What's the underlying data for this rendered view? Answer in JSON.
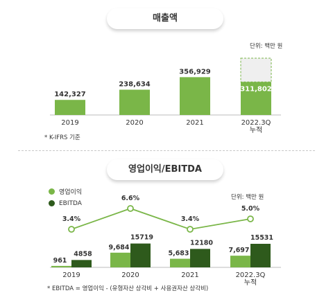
{
  "chart_data": [
    {
      "type": "bar",
      "title": "매출액",
      "unit": "단위: 백만 원",
      "note": "* K-IFRS 기준",
      "categories": [
        "2019",
        "2020",
        "2021",
        "2022.3Q\n누적"
      ],
      "values": [
        142327,
        238634,
        356929,
        311802
      ],
      "projection_box": "dashed outline above 2022.3Q bar",
      "colors": {
        "bar": "#7ab648",
        "box_border": "#7ab648",
        "box_fill": "#efefef"
      }
    },
    {
      "type": "bar",
      "title": "영업이익/EBITDA",
      "unit": "단위: 백만 원",
      "note": "* EBITDA = 영업이익 - (유형자산 상각비 + 사용권자산 상각비)",
      "categories": [
        "2019",
        "2020",
        "2021",
        "2022.3Q\n누적"
      ],
      "series": [
        {
          "name": "영업이익",
          "values": [
            961,
            9684,
            5683,
            7697
          ],
          "color": "#7ab648"
        },
        {
          "name": "EBITDA",
          "values": [
            4858,
            15719,
            12180,
            15531
          ],
          "color": "#2e5a1c"
        }
      ],
      "margin_line": {
        "values": [
          3.4,
          6.6,
          3.4,
          5.0
        ],
        "labels": [
          "3.4%",
          "6.6%",
          "3.4%",
          "5.0%"
        ],
        "color": "#7ab648"
      },
      "legend_position": "top-left"
    }
  ]
}
